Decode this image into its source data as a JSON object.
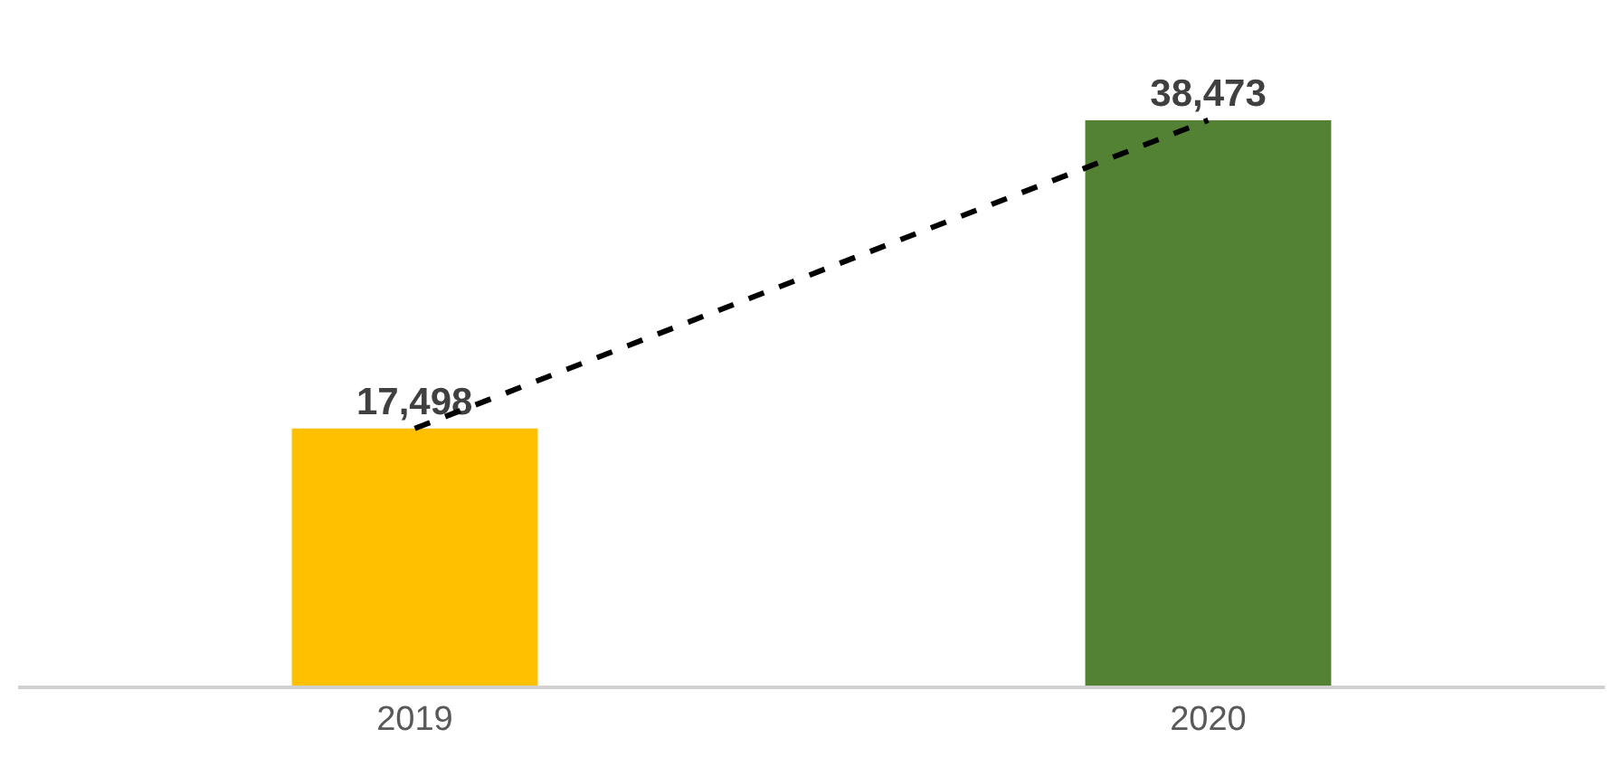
{
  "chart_data": {
    "type": "bar",
    "categories": [
      "2019",
      "2020"
    ],
    "series": [
      {
        "colors": [
          "#ffc000",
          "#548235"
        ],
        "values": [
          17498,
          38473
        ],
        "value_labels": [
          "17,498",
          "38,473"
        ]
      },
      {
        "type": "line",
        "color": "#000000",
        "values": [
          17498,
          38473
        ],
        "line_style": "dashed",
        "marker": "none"
      }
    ],
    "grid": false,
    "legend": false
  }
}
